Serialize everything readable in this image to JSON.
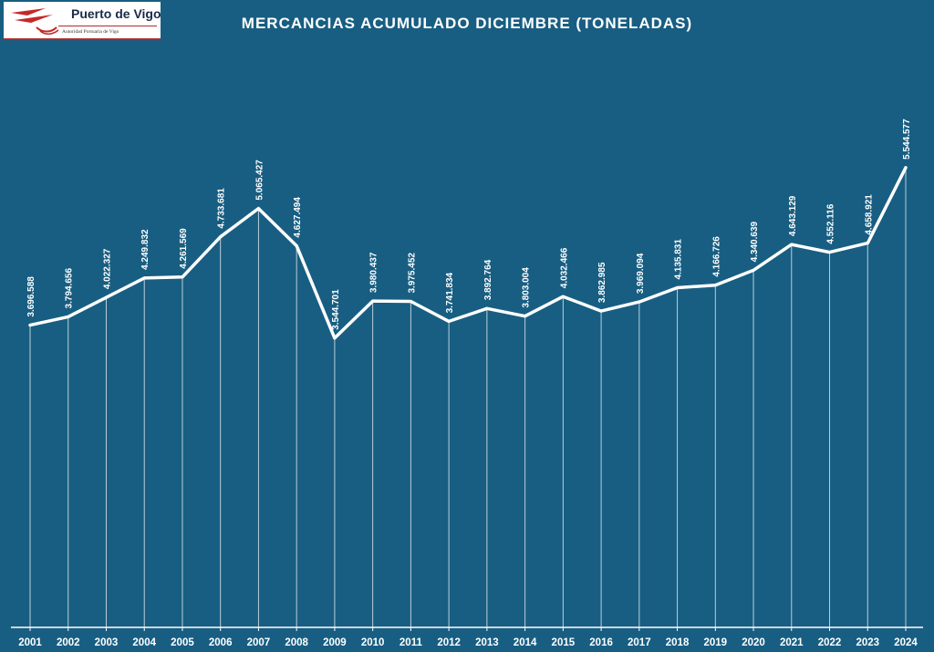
{
  "logo": {
    "title": "Puerto de Vigo",
    "subtitle": "Autoridad Portuaria de Vigo"
  },
  "colors": {
    "background": "#185e82",
    "line": "#ffffff",
    "logo_accent": "#b22a2a"
  },
  "chart_data": {
    "type": "line",
    "title": "MERCANCIAS ACUMULADO DICIEMBRE (TONELADAS)",
    "xlabel": "",
    "ylabel": "",
    "grid": false,
    "categories": [
      "2001",
      "2002",
      "2003",
      "2004",
      "2005",
      "2006",
      "2007",
      "2008",
      "2009",
      "2010",
      "2011",
      "2012",
      "2013",
      "2014",
      "2015",
      "2016",
      "2017",
      "2018",
      "2019",
      "2020",
      "2021",
      "2022",
      "2023",
      "2024"
    ],
    "values": [
      3696588,
      3794656,
      4022327,
      4249832,
      4261569,
      4733681,
      5065427,
      4627494,
      3544701,
      3980437,
      3975452,
      3741834,
      3892764,
      3803004,
      4032466,
      3862985,
      3969094,
      4135831,
      4166726,
      4340639,
      4643129,
      4552116,
      4658921,
      5544577
    ],
    "value_labels": [
      "3.696.588",
      "3.794.656",
      "4.022.327",
      "4.249.832",
      "4.261.569",
      "4.733.681",
      "5.065.427",
      "4.627.494",
      "3.544.701",
      "3.980.437",
      "3.975.452",
      "3.741.834",
      "3.892.764",
      "3.803.004",
      "4.032.466",
      "3.862.985",
      "3.969.094",
      "4.135.831",
      "4.166.726",
      "4.340.639",
      "4.643.129",
      "4.552.116",
      "4.658.921",
      "5.544.577"
    ]
  }
}
